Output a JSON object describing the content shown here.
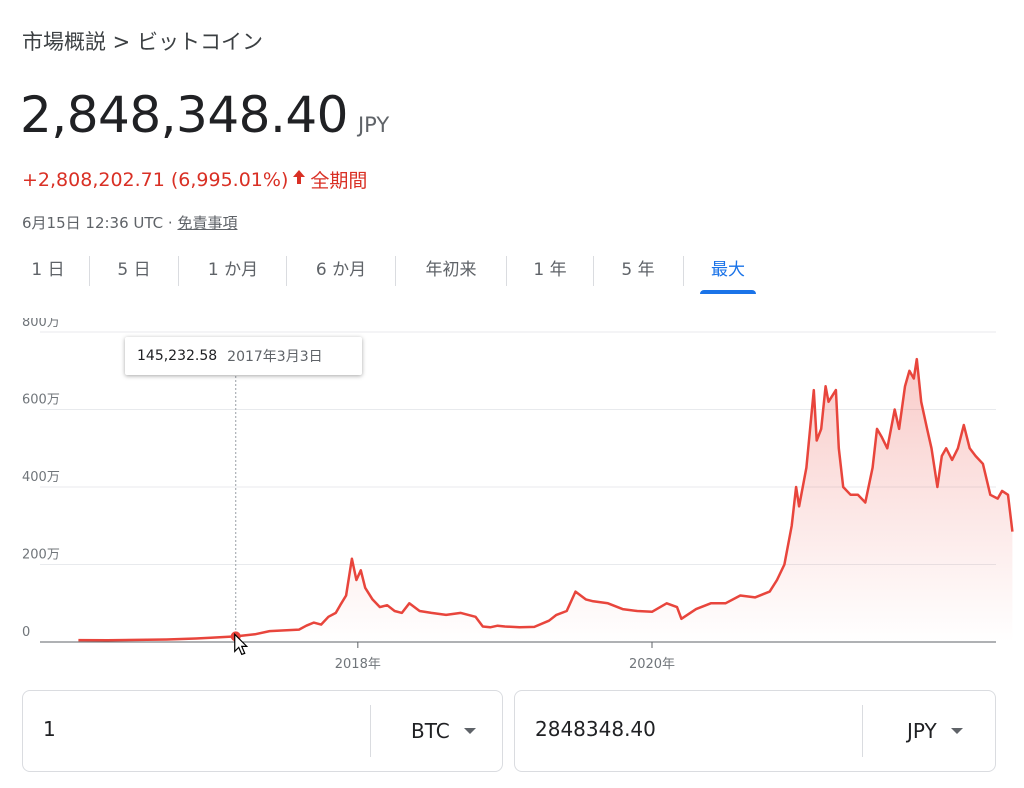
{
  "breadcrumb": "市場概説 > ビットコイン",
  "price": "2,848,348.40",
  "currency": "JPY",
  "change": {
    "text": "+2,808,202.71 (6,995.01%)",
    "period": "全期間",
    "direction": "up",
    "color": "#d93025"
  },
  "timestamp": {
    "text": "6月15日 12:36 UTC · ",
    "disclaimer": "免責事項"
  },
  "tabs": [
    {
      "label": "1 日"
    },
    {
      "label": "5 日"
    },
    {
      "label": "1 か月"
    },
    {
      "label": "6 か月"
    },
    {
      "label": "年初来"
    },
    {
      "label": "1 年"
    },
    {
      "label": "5 年"
    },
    {
      "label": "最大",
      "active": true
    }
  ],
  "tooltip": {
    "value": "145,232.58",
    "date": "2017年3月3日"
  },
  "converter": {
    "from": {
      "amount": "1",
      "unit": "BTC"
    },
    "to": {
      "amount": "2848348.40",
      "unit": "JPY"
    }
  },
  "chart_data": {
    "type": "area",
    "ylim": [
      0,
      8000000
    ],
    "yticks": [
      0,
      2000000,
      4000000,
      6000000,
      8000000
    ],
    "ytick_labels": [
      "0",
      "200万",
      "400万",
      "600万",
      "800万"
    ],
    "xticks": [
      2018.0,
      2020.0
    ],
    "xtick_labels": [
      "2018年",
      "2020年"
    ],
    "xlim": [
      2016.05,
      2022.46
    ],
    "grid": true,
    "line_color": "#e8453c",
    "highlight": {
      "x": 2017.17,
      "y": 145232.58
    },
    "series": [
      {
        "x": [
          2016.1,
          2016.3,
          2016.5,
          2016.7,
          2016.9,
          2017.0,
          2017.17,
          2017.3,
          2017.4,
          2017.5,
          2017.6,
          2017.65,
          2017.7,
          2017.75,
          2017.8,
          2017.85,
          2017.88,
          2017.92,
          2017.96,
          2017.99,
          2018.02,
          2018.05,
          2018.1,
          2018.15,
          2018.2,
          2018.25,
          2018.3,
          2018.35,
          2018.42,
          2018.5,
          2018.6,
          2018.7,
          2018.8,
          2018.85,
          2018.9,
          2018.95,
          2019.0,
          2019.1,
          2019.2,
          2019.3,
          2019.35,
          2019.42,
          2019.48,
          2019.55,
          2019.6,
          2019.7,
          2019.8,
          2019.9,
          2020.0,
          2020.1,
          2020.17,
          2020.2,
          2020.3,
          2020.4,
          2020.5,
          2020.6,
          2020.7,
          2020.8,
          2020.85,
          2020.9,
          2020.95,
          2020.98,
          2021.0,
          2021.05,
          2021.1,
          2021.12,
          2021.15,
          2021.18,
          2021.2,
          2021.25,
          2021.27,
          2021.3,
          2021.35,
          2021.4,
          2021.45,
          2021.5,
          2021.53,
          2021.56,
          2021.6,
          2021.65,
          2021.68,
          2021.72,
          2021.75,
          2021.78,
          2021.8,
          2021.83,
          2021.87,
          2021.9,
          2021.94,
          2021.97,
          2022.0,
          2022.04,
          2022.08,
          2022.12,
          2022.16,
          2022.2,
          2022.25,
          2022.3,
          2022.35,
          2022.38,
          2022.42,
          2022.45
        ],
        "y": [
          50000,
          45000,
          55000,
          65000,
          90000,
          110000,
          145232.58,
          200000,
          280000,
          300000,
          320000,
          420000,
          500000,
          450000,
          650000,
          750000,
          950000,
          1200000,
          2150000,
          1600000,
          1850000,
          1400000,
          1100000,
          900000,
          950000,
          800000,
          750000,
          1000000,
          800000,
          750000,
          700000,
          750000,
          650000,
          400000,
          380000,
          420000,
          400000,
          380000,
          390000,
          550000,
          700000,
          800000,
          1300000,
          1100000,
          1050000,
          1000000,
          850000,
          800000,
          780000,
          1000000,
          900000,
          600000,
          850000,
          1000000,
          1000000,
          1200000,
          1150000,
          1300000,
          1600000,
          2000000,
          3000000,
          4000000,
          3500000,
          4500000,
          6500000,
          5200000,
          5500000,
          6600000,
          6200000,
          6500000,
          5000000,
          4000000,
          3800000,
          3800000,
          3600000,
          4500000,
          5500000,
          5300000,
          5000000,
          6000000,
          5500000,
          6600000,
          7000000,
          6800000,
          7300000,
          6200000,
          5500000,
          5000000,
          4000000,
          4800000,
          5000000,
          4700000,
          5000000,
          5600000,
          5000000,
          4800000,
          4600000,
          3800000,
          3700000,
          3900000,
          3800000,
          2848348
        ]
      }
    ]
  }
}
